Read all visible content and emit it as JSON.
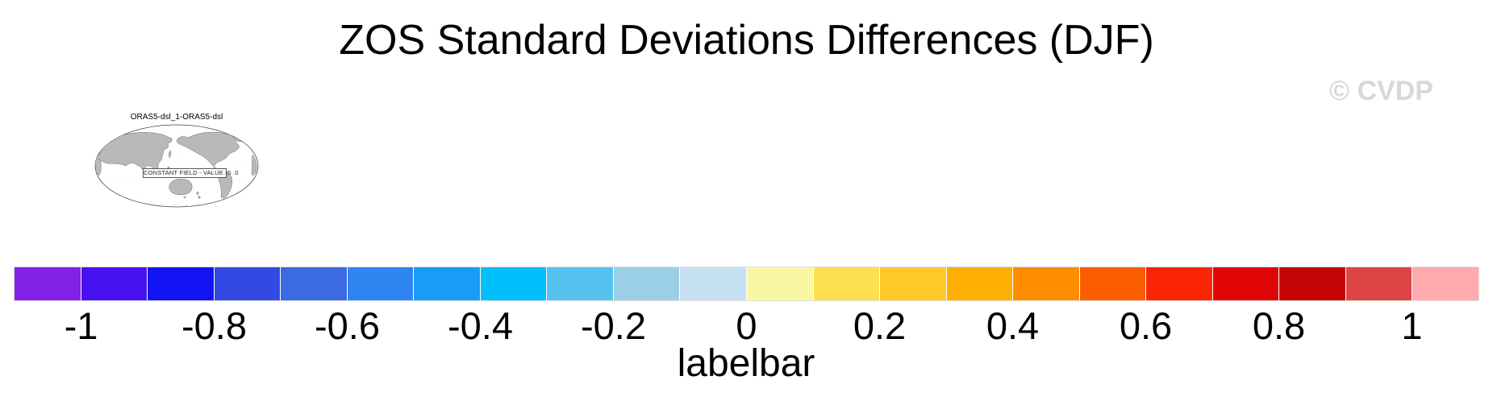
{
  "title": "ZOS Standard Deviations Differences (DJF)",
  "watermark": "© CVDP",
  "colors": {
    "watermark": "#d8d8d8",
    "land": "#b9b9b9",
    "coastline": "#555555"
  },
  "map_inset": {
    "title": "ORAS5-dsl_1-ORAS5-dsl",
    "annotation": "CONSTANT FIELD - VALUE IS .0"
  },
  "labelbar": {
    "caption": "labelbar",
    "tick_labels": [
      "-1",
      "-0.8",
      "-0.6",
      "-0.4",
      "-0.2",
      "0",
      "0.2",
      "0.4",
      "0.6",
      "0.8",
      "1"
    ],
    "colors": [
      "#8122e6",
      "#4712ef",
      "#1213f2",
      "#3349e4",
      "#3a6be3",
      "#2e85f1",
      "#189df6",
      "#00bffb",
      "#55c2ef",
      "#9bcfe7",
      "#c6e1f1",
      "#faf7a3",
      "#ffdf52",
      "#ffca28",
      "#ffae04",
      "#ff8d00",
      "#fb5d00",
      "#f92505",
      "#e00505",
      "#c30505",
      "#db4545",
      "#ffaaaf"
    ]
  },
  "chart_data": {
    "type": "heatmap",
    "title": "ZOS Standard Deviations Differences (DJF)",
    "season": "DJF",
    "panels": [
      {
        "label": "ORAS5-dsl_1-ORAS5-dsl",
        "annotation": "CONSTANT FIELD - VALUE IS .0",
        "constant_value": 0,
        "projection": "global oval (Pacific-centered)"
      }
    ],
    "colorbar": {
      "caption": "labelbar",
      "orientation": "horizontal",
      "tick_values": [
        -1,
        -0.8,
        -0.6,
        -0.4,
        -0.2,
        0,
        0.2,
        0.4,
        0.6,
        0.8,
        1
      ],
      "n_color_boxes": 22,
      "box_colors": [
        "#8122e6",
        "#4712ef",
        "#1213f2",
        "#3349e4",
        "#3a6be3",
        "#2e85f1",
        "#189df6",
        "#00bffb",
        "#55c2ef",
        "#9bcfe7",
        "#c6e1f1",
        "#faf7a3",
        "#ffdf52",
        "#ffca28",
        "#ffae04",
        "#ff8d00",
        "#fb5d00",
        "#f92505",
        "#e00505",
        "#c30505",
        "#db4545",
        "#ffaaaf"
      ]
    }
  }
}
